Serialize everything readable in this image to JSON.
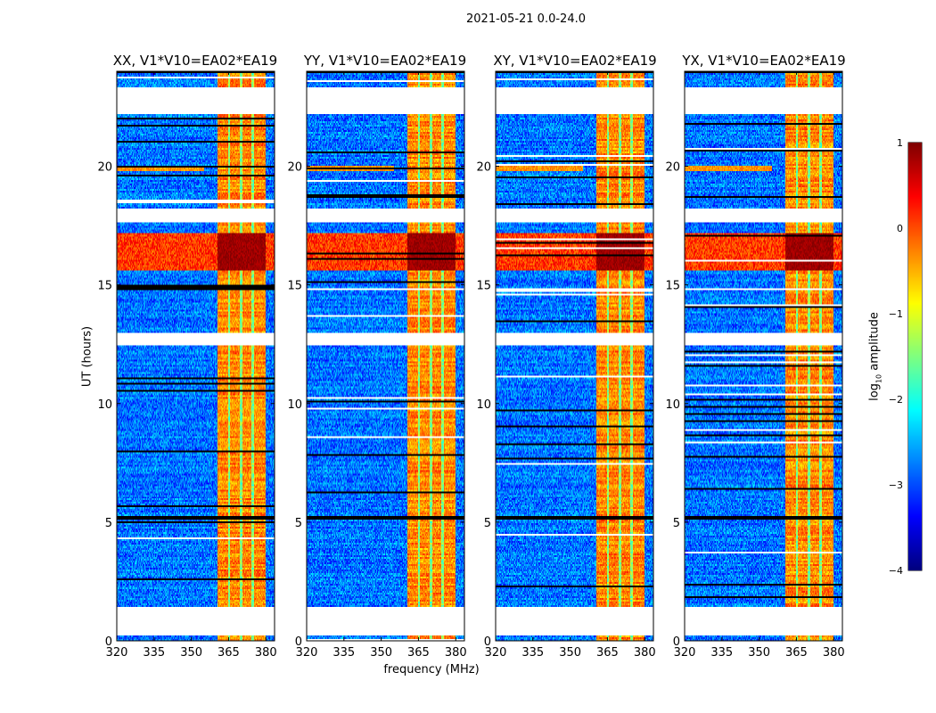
{
  "chart_data": {
    "type": "heatmap",
    "title": "2021-05-21 0.0-24.0",
    "xlabel": "frequency (MHz)",
    "ylabel": "UT (hours)",
    "xlim": [
      320,
      383.5
    ],
    "ylim": [
      0,
      24
    ],
    "xticks": [
      320,
      335,
      350,
      365,
      380
    ],
    "yticks": [
      0,
      5,
      10,
      15,
      20
    ],
    "panels": [
      {
        "title": "XX, V1*V10=EA02*EA19"
      },
      {
        "title": "YY, V1*V10=EA02*EA19"
      },
      {
        "title": "XY, V1*V10=EA02*EA19"
      },
      {
        "title": "YX, V1*V10=EA02*EA19"
      }
    ],
    "colorbar": {
      "label_main": "log",
      "label_sub": "10",
      "label_rest": " amplitude",
      "colormap": "jet",
      "range": [
        -4,
        1
      ],
      "ticks": [
        1,
        0,
        -1,
        -2,
        -3,
        -4
      ]
    },
    "features": {
      "background_level": -2.8,
      "bright_band_mhz": [
        360.5,
        380
      ],
      "bright_band_level": -0.4,
      "subband_edges_mhz": [
        365.2,
        370,
        374.8
      ],
      "strong_rfi_hours": [
        15.6,
        17.2
      ],
      "strong_rfi_level": 0.4,
      "flagged_hours": [
        [
          0.2,
          1.4
        ],
        [
          12.45,
          13.0
        ],
        [
          17.6,
          18.2
        ],
        [
          22.2,
          23.3
        ]
      ]
    }
  }
}
